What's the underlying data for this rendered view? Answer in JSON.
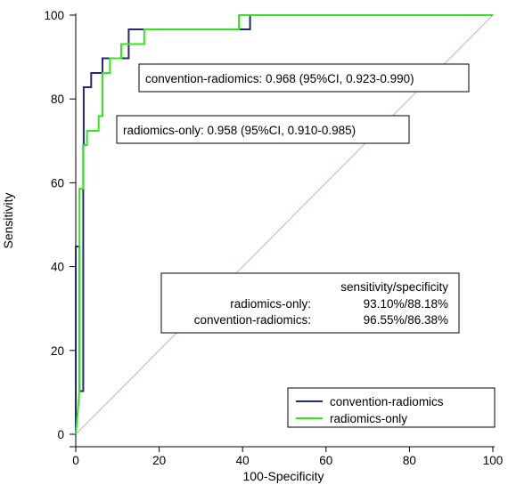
{
  "chart_data": {
    "type": "line",
    "title": "",
    "xlabel": "100-Specificity",
    "ylabel": "Sensitivity",
    "xlim": [
      0,
      100
    ],
    "ylim": [
      0,
      100
    ],
    "xticks": [
      0,
      20,
      40,
      60,
      80,
      100
    ],
    "yticks": [
      0,
      20,
      40,
      60,
      80,
      100
    ],
    "grid": false,
    "reference_line": {
      "x": [
        0,
        100
      ],
      "y": [
        0,
        100
      ],
      "color": "#d7a9b4"
    },
    "series": [
      {
        "name": "convention-radiomics",
        "color": "#1f2a78",
        "x": [
          0,
          0,
          0.9,
          0.9,
          1.8,
          1.8,
          1.9,
          1.9,
          3.7,
          3.7,
          6.4,
          6.4,
          12.7,
          12.7,
          16.4,
          16.4,
          41.8,
          41.8,
          100
        ],
        "y": [
          0,
          44.8,
          44.8,
          10.3,
          10.3,
          68.9,
          68.9,
          82.8,
          82.8,
          86.2,
          86.2,
          89.7,
          89.7,
          96.6,
          96.6,
          96.6,
          96.6,
          100,
          100
        ]
      },
      {
        "name": "radiomics-only",
        "color": "#33e61a",
        "x": [
          0,
          0.9,
          0.9,
          1.8,
          1.8,
          2.7,
          2.7,
          3.6,
          3.6,
          5.5,
          5.5,
          6.4,
          6.4,
          8.2,
          8.2,
          10.9,
          10.9,
          12.7,
          12.7,
          14.6,
          14.6,
          16.4,
          16.4,
          39.1,
          39.1,
          100
        ],
        "y": [
          0,
          10.3,
          58.6,
          58.6,
          69.0,
          69.0,
          72.4,
          72.4,
          72.4,
          72.4,
          75.9,
          75.9,
          86.2,
          86.2,
          89.7,
          89.7,
          93.1,
          93.1,
          93.1,
          93.1,
          93.1,
          93.1,
          96.6,
          96.6,
          100,
          100
        ]
      }
    ],
    "annotations": {
      "auc_convention": "convention-radiomics: 0.968 (95%CI, 0.923-0.990)",
      "auc_radiomics": "radiomics-only: 0.958 (95%CI, 0.910-0.985)",
      "table_header": "sensitivity/specificity",
      "table_rows": [
        {
          "label": "radiomics-only:",
          "value": "93.10%/88.18%"
        },
        {
          "label": "convention-radiomics:",
          "value": "96.55%/86.38%"
        }
      ]
    },
    "legend_position": "bottom-right"
  },
  "colors": {
    "axis": "#000000",
    "box_border": "#000000",
    "reference": "#d7a9b4"
  }
}
